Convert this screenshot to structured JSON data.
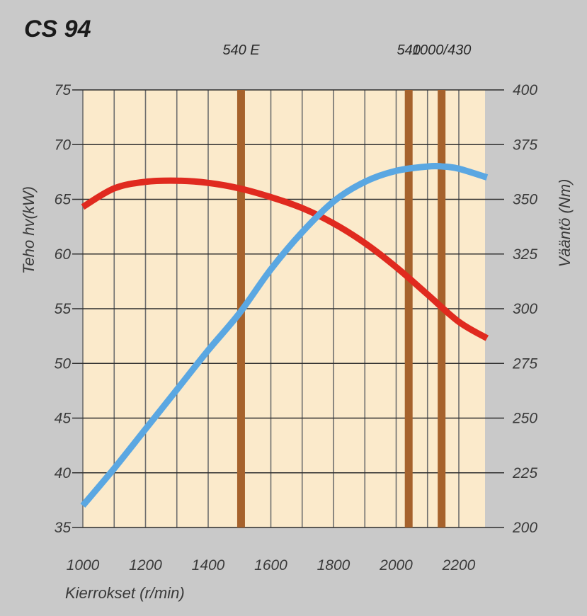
{
  "chart_data": {
    "type": "line",
    "title": "CS 94",
    "xlabel": "Kierrokset (r/min)",
    "ylabel_left": "Teho hv(kW)",
    "ylabel_right": "Vääntö (Nm)",
    "x_ticks": [
      "1000",
      "1200",
      "1400",
      "1600",
      "1800",
      "2000",
      "2200"
    ],
    "y_left_ticks": [
      "35",
      "40",
      "45",
      "50",
      "55",
      "60",
      "65",
      "70",
      "75"
    ],
    "y_right_ticks": [
      "200",
      "225",
      "250",
      "275",
      "300",
      "325",
      "350",
      "375",
      "400"
    ],
    "xlim": [
      1000,
      2300
    ],
    "ylim_left": [
      35,
      75
    ],
    "ylim_right": [
      200,
      400
    ],
    "grid": true,
    "series": [
      {
        "axis": "left",
        "color": "#e02a1f",
        "x": [
          1000,
          1100,
          1200,
          1300,
          1400,
          1500,
          1600,
          1700,
          1800,
          1900,
          2000,
          2100,
          2200,
          2290
        ],
        "values": [
          64.3,
          66.0,
          66.6,
          66.7,
          66.5,
          66.0,
          65.2,
          64.2,
          62.8,
          61.0,
          58.8,
          56.3,
          53.8,
          52.3
        ]
      },
      {
        "axis": "right",
        "color": "#5aa7e2",
        "x": [
          1000,
          1100,
          1200,
          1300,
          1400,
          1500,
          1600,
          1700,
          1800,
          1900,
          2000,
          2100,
          2150,
          2200,
          2290
        ],
        "values": [
          210,
          227,
          245,
          263,
          281,
          298,
          318,
          335,
          349,
          358,
          363,
          365,
          365,
          364,
          360
        ]
      }
    ],
    "markers": [
      {
        "label": "540 E",
        "x": 1505
      },
      {
        "label": "540",
        "x": 2040
      },
      {
        "label": "1000/430",
        "x": 2145
      }
    ],
    "colors": {
      "page_background": "#c9c9c9",
      "plot_background": "#fbeacb",
      "grid": "#6e6e6e",
      "marker_bar": "#a6622c"
    }
  }
}
